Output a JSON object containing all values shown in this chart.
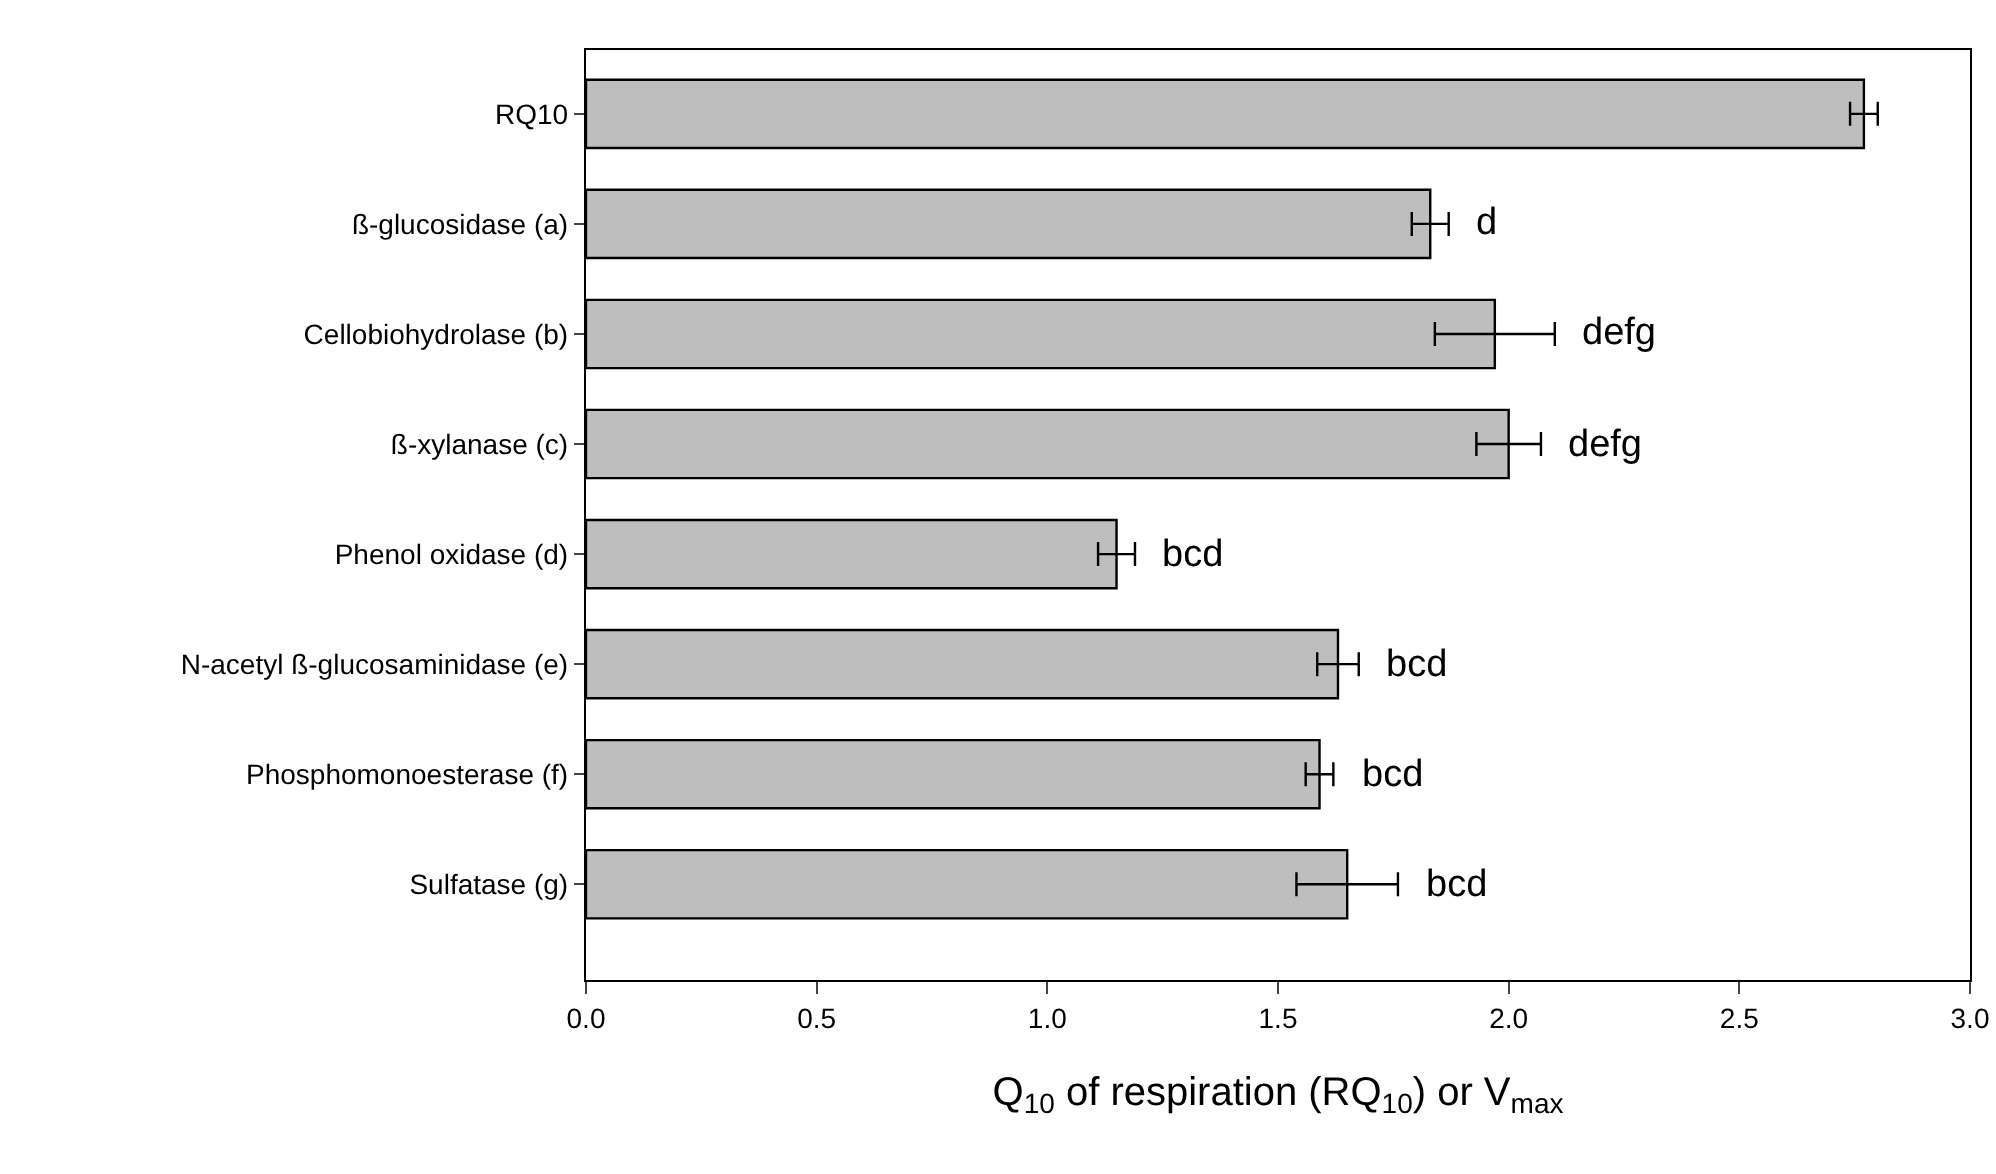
{
  "chart_data": {
    "type": "bar",
    "orientation": "horizontal",
    "xlabel": "Q$_{10}$ of respiration (RQ$_{10}$) or V$_{max}$",
    "categories": [
      "RQ10",
      "ß-glucosidase (a)",
      "Cellobiohydrolase (b)",
      "ß-xylanase (c)",
      "Phenol oxidase (d)",
      "N-acetyl ß-glucosaminidase (e)",
      "Phosphomonoesterase (f)",
      "Sulfatase (g)"
    ],
    "values": [
      2.77,
      1.83,
      1.97,
      2.0,
      1.15,
      1.63,
      1.59,
      1.65
    ],
    "errors": [
      0.03,
      0.04,
      0.13,
      0.07,
      0.04,
      0.045,
      0.03,
      0.11
    ],
    "color": "#bebebe",
    "xlim": [
      0,
      3
    ],
    "xticks": [
      {
        "value": 0,
        "label": "0.0"
      },
      {
        "value": 0.5,
        "label": "0.5"
      },
      {
        "value": 1,
        "label": "1.0"
      },
      {
        "value": 1.5,
        "label": "1.5"
      },
      {
        "value": 2,
        "label": "2.0"
      },
      {
        "value": 2.5,
        "label": "2.5"
      },
      {
        "value": 3,
        "label": "3.0"
      }
    ],
    "grid": false,
    "legend": false,
    "annotations": [
      {
        "text": "d",
        "x": 1.83,
        "y": "ß-glucosidase (a)"
      },
      {
        "text": "defg",
        "x": 1.97,
        "y": "Cellobiohydrolase (b)"
      },
      {
        "text": "defg",
        "x": 2.0,
        "y": "ß-xylanase (c)"
      },
      {
        "text": "bcd",
        "x": 1.15,
        "y": "Phenol oxidase (d)"
      },
      {
        "text": "bcd",
        "x": 1.63,
        "y": "N-acetyl ß-glucosaminidase (e)"
      },
      {
        "text": "bcd",
        "x": 1.59,
        "y": "Phosphomonoesterase (f)"
      },
      {
        "text": "bcd",
        "x": 1.65,
        "y": "Sulfatase (g)"
      }
    ]
  }
}
